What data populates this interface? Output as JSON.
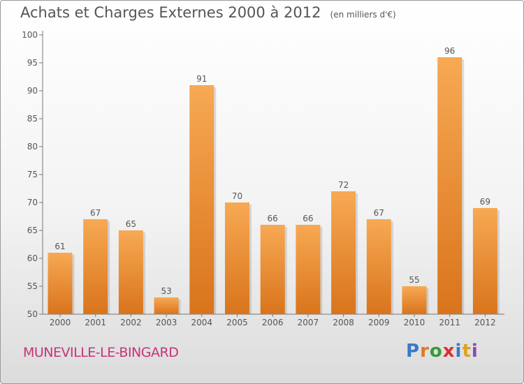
{
  "header": {
    "title": "Achats et Charges Externes 2000 à 2012",
    "unit": "(en milliers d'€)"
  },
  "footer": {
    "town": "MUNEVILLE-LE-BINGARD",
    "brand": "Proxiti",
    "brand_letters": [
      {
        "ch": "P",
        "color": "#3a78c8"
      },
      {
        "ch": "r",
        "color": "#e07a1e"
      },
      {
        "ch": "o",
        "color": "#3a9a3a"
      },
      {
        "ch": "x",
        "color": "#d83030"
      },
      {
        "ch": "i",
        "color": "#3a78c8"
      },
      {
        "ch": "t",
        "color": "#e0a21e"
      },
      {
        "ch": "i",
        "color": "#8a4ab0"
      }
    ]
  },
  "colors": {
    "bar_light": "#f7a953",
    "bar_dark": "#d9741c",
    "text": "#555555",
    "town": "#c8327a"
  },
  "chart_data": {
    "type": "bar",
    "categories": [
      "2000",
      "2001",
      "2002",
      "2003",
      "2004",
      "2005",
      "2006",
      "2007",
      "2008",
      "2009",
      "2010",
      "2011",
      "2012"
    ],
    "values": [
      61,
      67,
      65,
      53,
      91,
      70,
      66,
      66,
      72,
      67,
      55,
      96,
      69
    ],
    "title": "Achats et Charges Externes 2000 à 2012",
    "unit": "(en milliers d'€)",
    "xlabel": "",
    "ylabel": "",
    "ylim": [
      50,
      100
    ],
    "yticks": [
      50,
      55,
      60,
      65,
      70,
      75,
      80,
      85,
      90,
      95,
      100
    ],
    "grid": false,
    "legend": "none"
  }
}
